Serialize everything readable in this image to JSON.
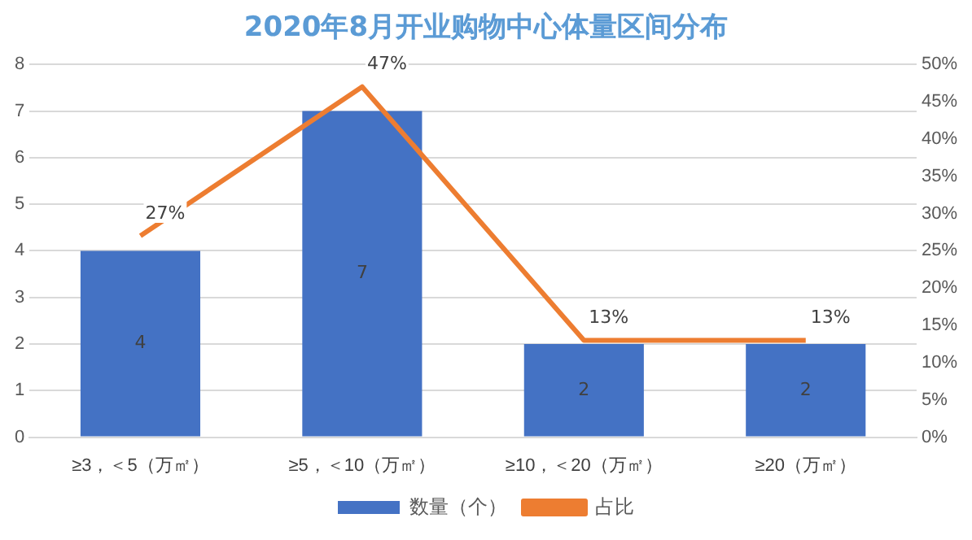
{
  "chart_data": {
    "type": "bar",
    "title": "2020年8月开业购物中心体量区间分布",
    "categories": [
      "≥3，＜5（万㎡）",
      "≥5，＜10（万㎡）",
      "≥10，＜20（万㎡）",
      "≥20（万㎡）"
    ],
    "series": [
      {
        "name": "数量（个）",
        "color": "#4472c4",
        "values": [
          4,
          7,
          2,
          2
        ],
        "value_labels": [
          "4",
          "7",
          "2",
          "2"
        ]
      },
      {
        "name": "占比",
        "type": "line",
        "axis": "y2",
        "color": "#ed7d31",
        "values": [
          27,
          47,
          13,
          13
        ],
        "value_labels": [
          "27%",
          "47%",
          "13%",
          "13%"
        ]
      }
    ],
    "ylim": [
      0,
      8
    ],
    "yticks": [
      0,
      1,
      2,
      3,
      4,
      5,
      6,
      7,
      8
    ],
    "y2lim": [
      0,
      50
    ],
    "y2ticks": [
      {
        "value": 0,
        "label": "0%"
      },
      {
        "value": 5,
        "label": "5%"
      },
      {
        "value": 10,
        "label": "10%"
      },
      {
        "value": 15,
        "label": "15%"
      },
      {
        "value": 20,
        "label": "20%"
      },
      {
        "value": 25,
        "label": "25%"
      },
      {
        "value": 30,
        "label": "30%"
      },
      {
        "value": 35,
        "label": "35%"
      },
      {
        "value": 40,
        "label": "40%"
      },
      {
        "value": 45,
        "label": "45%"
      },
      {
        "value": 50,
        "label": "50%"
      }
    ],
    "grid": "y",
    "legend": "bottom",
    "marker": "none"
  }
}
